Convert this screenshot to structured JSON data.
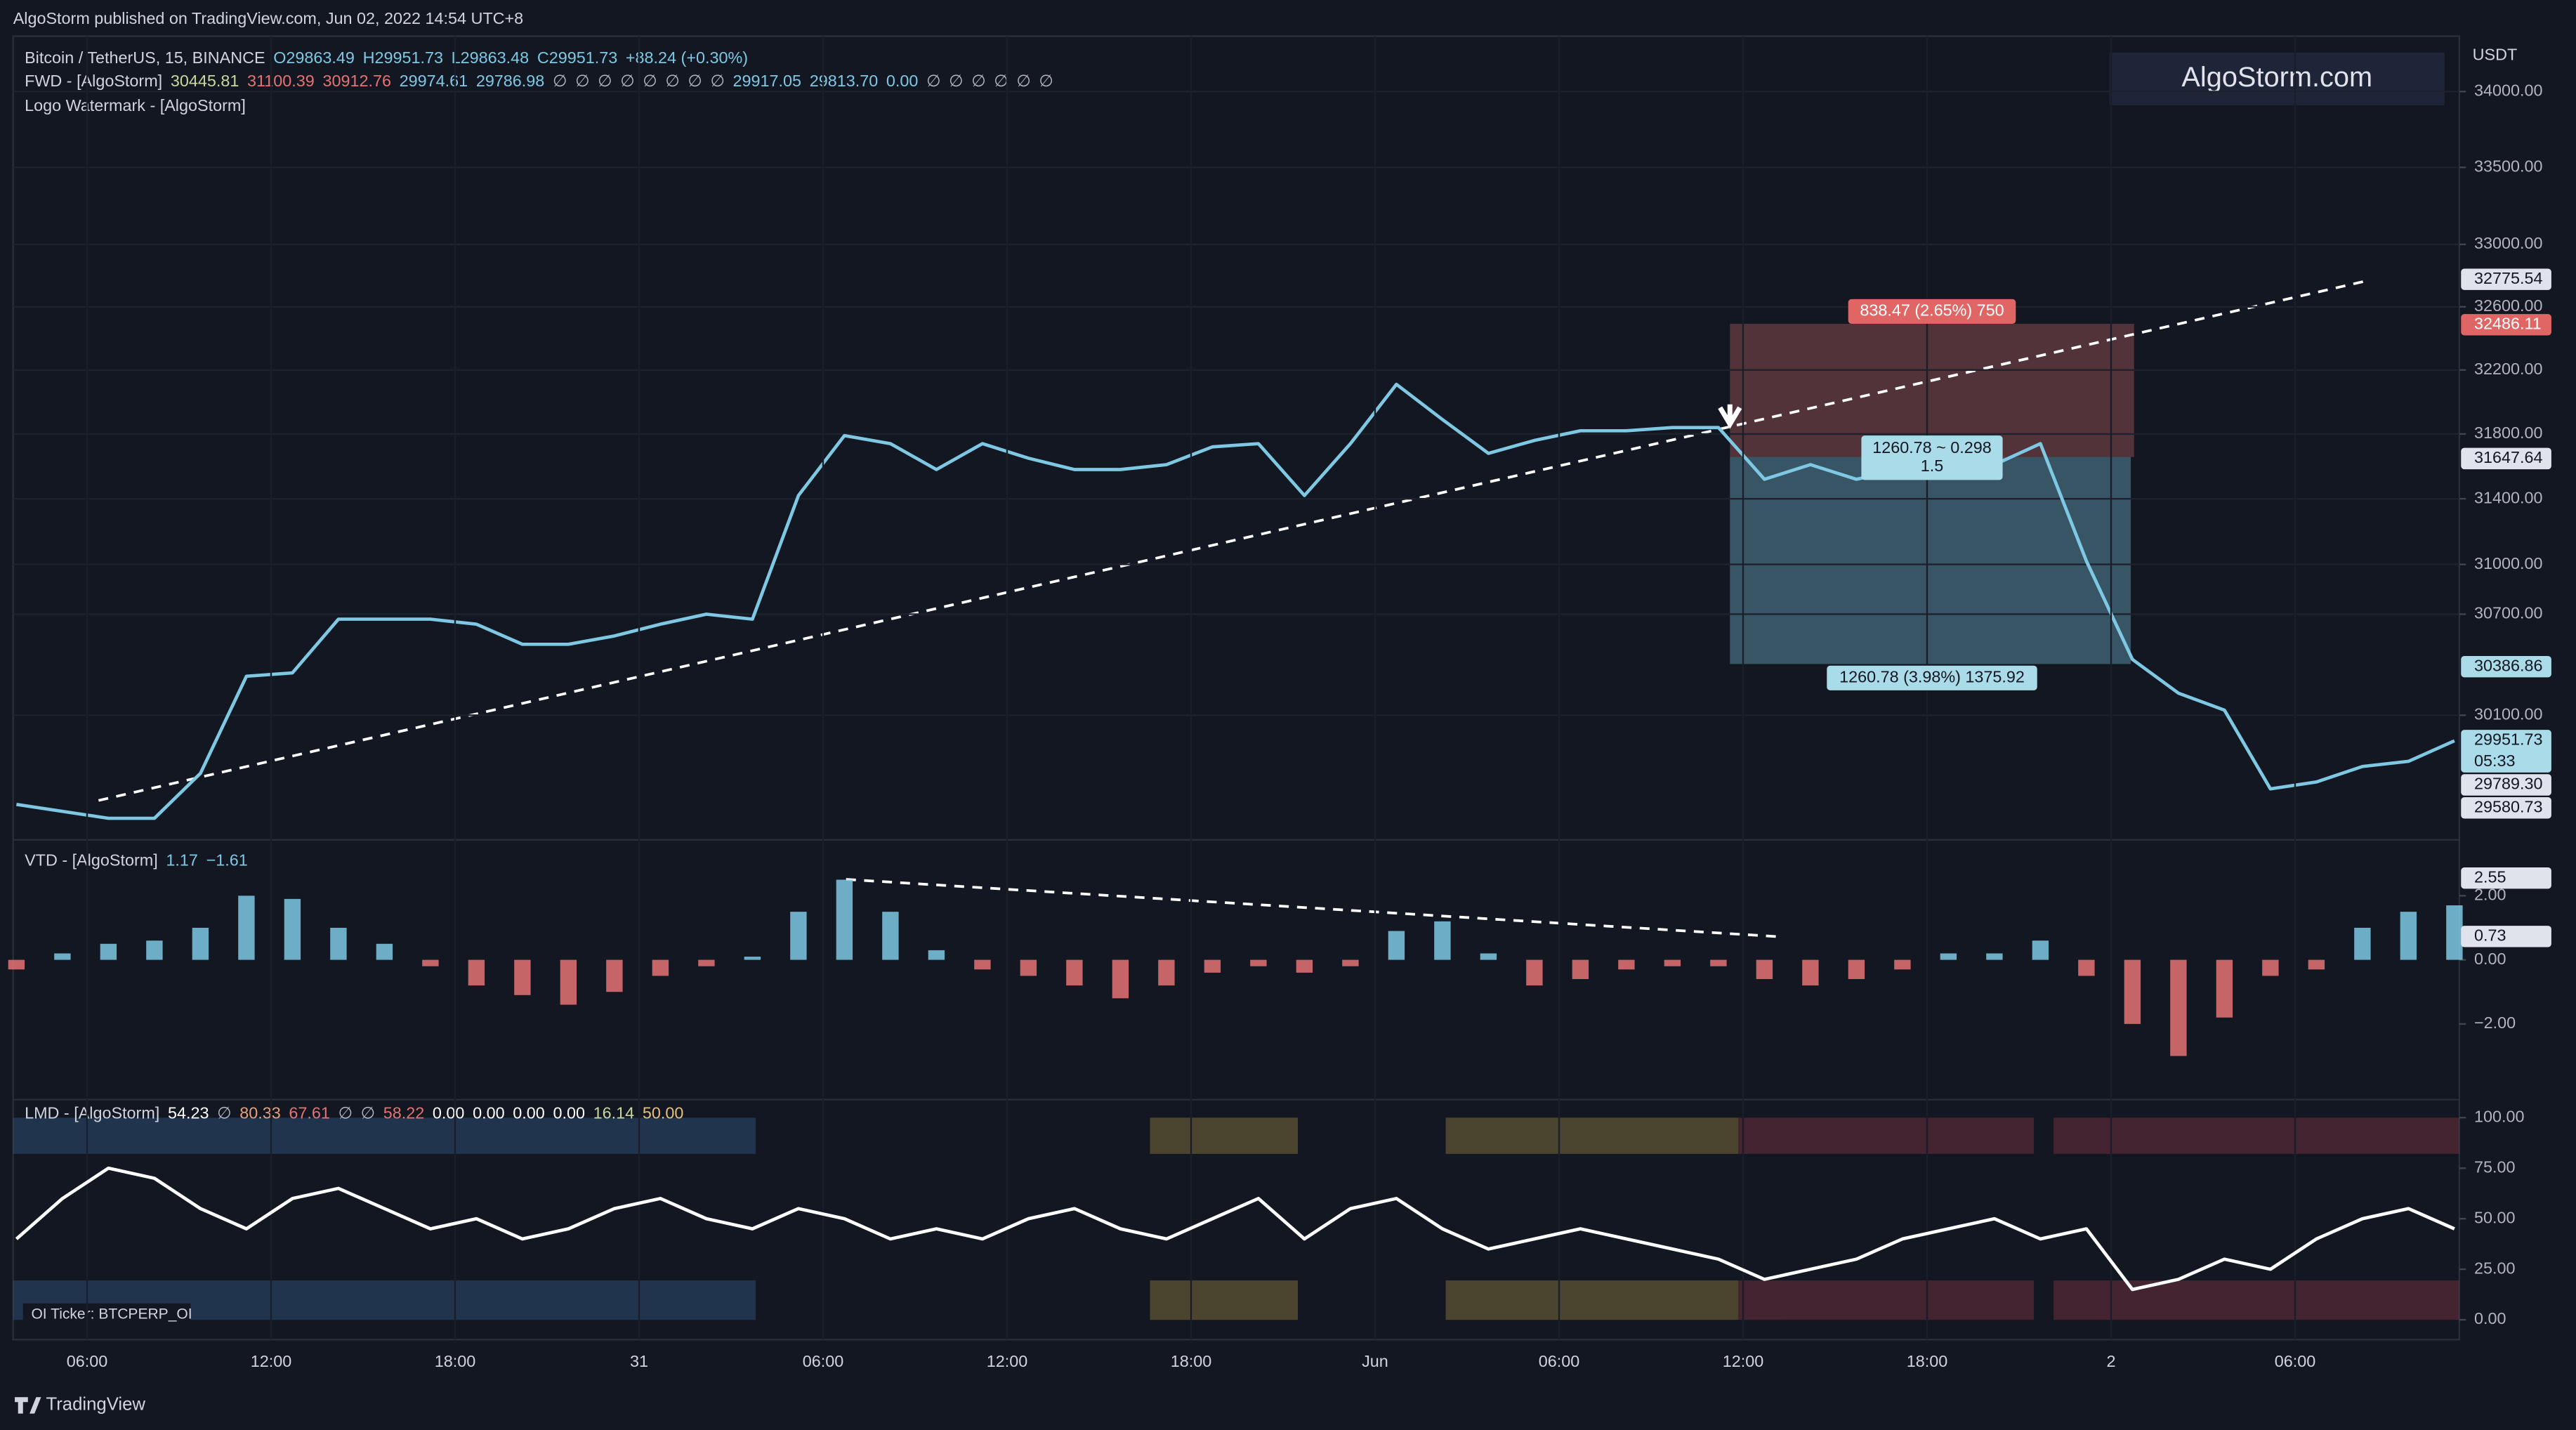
{
  "header": {
    "title": "AlgoStorm published on TradingView.com, Jun 02, 2022 14:54 UTC+8",
    "watermark": "AlgoStorm.com",
    "currency": "USDT",
    "footer": "TradingView",
    "oi_ticker": "OI Ticker: BTCPERP_OI"
  },
  "legend": {
    "symbol": [
      {
        "text": "Bitcoin / TetherUS, 15, BINANCE",
        "color": "#d1d4dc"
      },
      {
        "text": "O29863.49",
        "color": "#7ec8e3"
      },
      {
        "text": "H29951.73",
        "color": "#7ec8e3"
      },
      {
        "text": "L29863.48",
        "color": "#7ec8e3"
      },
      {
        "text": "C29951.73",
        "color": "#7ec8e3"
      },
      {
        "text": "+88.24 (+0.30%)",
        "color": "#7ec8e3"
      }
    ],
    "fwd": [
      {
        "text": "FWD - [AlgoStorm]",
        "color": "#d1d4dc"
      },
      {
        "text": "30445.81",
        "color": "#c8d89a"
      },
      {
        "text": "31100.39",
        "color": "#e57373"
      },
      {
        "text": "30912.76",
        "color": "#e57373"
      },
      {
        "text": "29974.61",
        "color": "#7ec8e3"
      },
      {
        "text": "29786.98",
        "color": "#7ec8e3"
      },
      {
        "text": "∅",
        "color": "#b2b5be"
      },
      {
        "text": "∅",
        "color": "#b2b5be"
      },
      {
        "text": "∅",
        "color": "#b2b5be"
      },
      {
        "text": "∅",
        "color": "#b2b5be"
      },
      {
        "text": "∅",
        "color": "#b2b5be"
      },
      {
        "text": "∅",
        "color": "#b2b5be"
      },
      {
        "text": "∅",
        "color": "#b2b5be"
      },
      {
        "text": "∅",
        "color": "#b2b5be"
      },
      {
        "text": "29917.05",
        "color": "#7ec8e3"
      },
      {
        "text": "29813.70",
        "color": "#7ec8e3"
      },
      {
        "text": "0.00",
        "color": "#7ec8e3"
      },
      {
        "text": "∅",
        "color": "#b2b5be"
      },
      {
        "text": "∅",
        "color": "#b2b5be"
      },
      {
        "text": "∅",
        "color": "#b2b5be"
      },
      {
        "text": "∅",
        "color": "#b2b5be"
      },
      {
        "text": "∅",
        "color": "#b2b5be"
      },
      {
        "text": "∅",
        "color": "#b2b5be"
      }
    ],
    "logo": [
      {
        "text": "Logo Watermark - [AlgoStorm]",
        "color": "#d1d4dc"
      }
    ],
    "vtd": [
      {
        "text": "VTD - [AlgoStorm]",
        "color": "#d1d4dc"
      },
      {
        "text": "1.17",
        "color": "#7ec8e3"
      },
      {
        "text": "−1.61",
        "color": "#7ec8e3"
      }
    ],
    "lmd": [
      {
        "text": "LMD - [AlgoStorm]",
        "color": "#d1d4dc"
      },
      {
        "text": "54.23",
        "color": "#ffffff"
      },
      {
        "text": "∅",
        "color": "#b2b5be"
      },
      {
        "text": "80.33",
        "color": "#e8a07a"
      },
      {
        "text": "67.61",
        "color": "#e57373"
      },
      {
        "text": "∅",
        "color": "#b2b5be"
      },
      {
        "text": "∅",
        "color": "#b2b5be"
      },
      {
        "text": "58.22",
        "color": "#e57373"
      },
      {
        "text": "0.00",
        "color": "#ffffff"
      },
      {
        "text": "0.00",
        "color": "#ffffff"
      },
      {
        "text": "0.00",
        "color": "#ffffff"
      },
      {
        "text": "0.00",
        "color": "#ffffff"
      },
      {
        "text": "16.14",
        "color": "#c8d89a"
      },
      {
        "text": "50.00",
        "color": "#e8c07a"
      }
    ]
  },
  "annotations": [
    {
      "text": "838.47 (2.65%) 750",
      "color": "#e06666"
    },
    {
      "text": "1260.78 ~ 0.298",
      "color": "#a9dbe8"
    },
    {
      "text": "1.5",
      "color": "#a9dbe8"
    },
    {
      "text": "1260.78 (3.98%) 1375.92",
      "color": "#a9dbe8"
    }
  ],
  "chart_data": [
    {
      "type": "line",
      "log_scale": true,
      "grid": true,
      "series": [
        {
          "color": "#7ec8e3",
          "values": [
            29580,
            29540,
            29500,
            29500,
            29760,
            30330,
            30350,
            30670,
            30670,
            30670,
            30640,
            30520,
            30520,
            30570,
            30640,
            30700,
            30670,
            31420,
            31790,
            31740,
            31580,
            31740,
            31650,
            31580,
            31580,
            31610,
            31720,
            31740,
            31420,
            31740,
            32110,
            31890,
            31680,
            31760,
            31820,
            31820,
            31840,
            31840,
            31520,
            31610,
            31520,
            31580,
            31540,
            31610,
            31740,
            31020,
            30430,
            30230,
            30130,
            29670,
            29710,
            29800,
            29830,
            29950
          ]
        }
      ],
      "ylim": [
        29385,
        34370
      ],
      "yticks": [
        {
          "value": 34000,
          "label": "34000.00"
        },
        {
          "value": 33500,
          "label": "33500.00"
        },
        {
          "value": 33000,
          "label": "33000.00"
        },
        {
          "value": 32600,
          "label": "32600.00"
        },
        {
          "value": 32200,
          "label": "32200.00"
        },
        {
          "value": 31800,
          "label": "31800.00"
        },
        {
          "value": 31400,
          "label": "31400.00"
        },
        {
          "value": 31000,
          "label": "31000.00"
        },
        {
          "value": 30700,
          "label": "30700.00"
        },
        {
          "value": 30100,
          "label": "30100.00"
        }
      ],
      "value_labels": [
        {
          "value": 32775.54,
          "label": "32775.54",
          "bg": "#e0e3eb",
          "fg": "#131722"
        },
        {
          "value": 32486.11,
          "label": "32486.11",
          "bg": "#e06666",
          "fg": "#ffffff"
        },
        {
          "value": 31647.64,
          "label": "31647.64",
          "bg": "#e0e3eb",
          "fg": "#131722"
        },
        {
          "value": 30386.86,
          "label": "30386.86",
          "bg": "#a9dbe8",
          "fg": "#131722"
        },
        {
          "value": 29951.73,
          "label": "29951.73",
          "sub": "05:33",
          "bg": "#a9dbe8",
          "fg": "#131722"
        },
        {
          "value": 29789.3,
          "label": "29789.30",
          "bg": "#e0e3eb",
          "fg": "#131722"
        },
        {
          "value": 29580.73,
          "label": "29580.73",
          "bg": "#e0e3eb",
          "fg": "#131722"
        }
      ],
      "x_labels": [
        "06:00",
        "12:00",
        "18:00",
        "31",
        "06:00",
        "12:00",
        "18:00",
        "Jun",
        "06:00",
        "12:00",
        "18:00",
        "2",
        "06:00"
      ]
    },
    {
      "type": "histogram",
      "pos_color": "#7ec8e3",
      "neg_color": "#e57373",
      "values": [
        -0.3,
        0.2,
        0.5,
        0.6,
        1.0,
        2.0,
        1.9,
        1.0,
        0.5,
        -0.2,
        -0.8,
        -1.1,
        -1.4,
        -1.0,
        -0.5,
        -0.2,
        0.1,
        1.5,
        2.5,
        1.5,
        0.3,
        -0.3,
        -0.5,
        -0.8,
        -1.2,
        -0.8,
        -0.4,
        -0.2,
        -0.4,
        -0.2,
        0.9,
        1.2,
        0.2,
        -0.8,
        -0.6,
        -0.3,
        -0.2,
        -0.2,
        -0.6,
        -0.8,
        -0.6,
        -0.3,
        0.2,
        0.2,
        0.6,
        -0.5,
        -2.0,
        -3.0,
        -1.8,
        -0.5,
        -0.3,
        1.0,
        1.5,
        1.7
      ],
      "ylim": [
        -4.31,
        3.69
      ],
      "yticks": [
        {
          "value": 2,
          "label": "2.00"
        },
        {
          "value": 0,
          "label": "0.00"
        },
        {
          "value": -2,
          "label": "−2.00"
        }
      ],
      "value_labels": [
        {
          "value": 2.55,
          "label": "2.55",
          "bg": "#e0e3eb",
          "fg": "#131722"
        },
        {
          "value": 0.73,
          "label": "0.73",
          "bg": "#e0e3eb",
          "fg": "#131722"
        }
      ]
    },
    {
      "type": "line",
      "series": [
        {
          "color": "#ffffff",
          "values": [
            40,
            60,
            75,
            70,
            55,
            45,
            60,
            65,
            55,
            45,
            50,
            40,
            45,
            55,
            60,
            50,
            45,
            55,
            50,
            40,
            45,
            40,
            50,
            55,
            45,
            40,
            50,
            60,
            40,
            55,
            60,
            45,
            35,
            40,
            45,
            40,
            35,
            30,
            20,
            25,
            30,
            40,
            45,
            50,
            40,
            45,
            15,
            20,
            30,
            25,
            40,
            50,
            55,
            45
          ]
        }
      ],
      "ylim": [
        -9.8,
        108.1
      ],
      "yticks": [
        {
          "value": 100,
          "label": "100.00"
        },
        {
          "value": 75,
          "label": "75.00"
        },
        {
          "value": 50,
          "label": "50.00"
        },
        {
          "value": 25,
          "label": "25.00"
        },
        {
          "value": 0,
          "label": "0.00"
        }
      ]
    }
  ]
}
